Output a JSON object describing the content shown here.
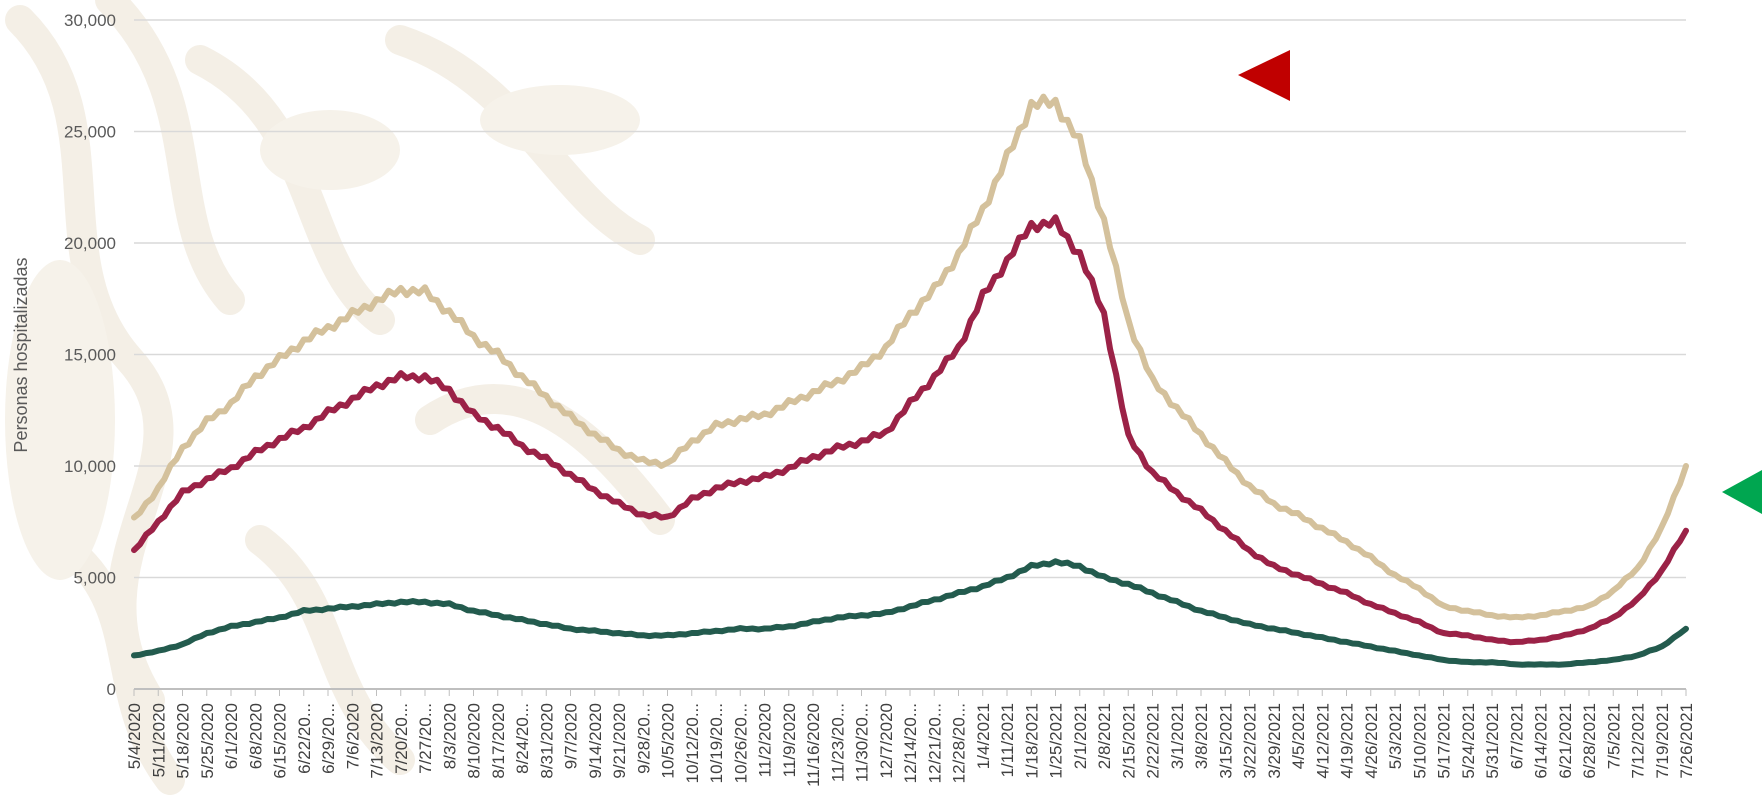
{
  "chart_data": {
    "type": "line",
    "title": "",
    "xlabel": "",
    "ylabel": "Personas hospitalizadas",
    "ylim": [
      0,
      30000
    ],
    "yticks": [
      "0",
      "5,000",
      "10,000",
      "15,000",
      "20,000",
      "25,000",
      "30,000"
    ],
    "grid": true,
    "legend": "none",
    "x": [
      "5/4/2020",
      "5/11/2020",
      "5/18/2020",
      "5/25/2020",
      "6/1/2020",
      "6/8/2020",
      "6/15/2020",
      "6/22/20...",
      "6/29/20...",
      "7/6/2020",
      "7/13/2020",
      "7/20/20...",
      "7/27/20...",
      "8/3/2020",
      "8/10/2020",
      "8/17/2020",
      "8/24/20...",
      "8/31/2020",
      "9/7/2020",
      "9/14/2020",
      "9/21/2020",
      "9/28/20...",
      "10/5/2020",
      "10/12/20...",
      "10/19/20...",
      "10/26/20...",
      "11/2/2020",
      "11/9/2020",
      "11/16/2020",
      "11/23/20...",
      "11/30/20...",
      "12/7/2020",
      "12/14/20...",
      "12/21/20...",
      "12/28/20...",
      "1/4/2021",
      "1/11/2021",
      "1/18/2021",
      "1/25/2021",
      "2/1/2021",
      "2/8/2021",
      "2/15/2021",
      "2/22/2021",
      "3/1/2021",
      "3/8/2021",
      "3/15/2021",
      "3/22/2021",
      "3/29/2021",
      "4/5/2021",
      "4/12/2021",
      "4/19/2021",
      "4/26/2021",
      "5/3/2021",
      "5/10/2021",
      "5/17/2021",
      "5/24/2021",
      "5/31/2021",
      "6/7/2021",
      "6/14/2021",
      "6/21/2021",
      "6/28/2021",
      "7/5/2021",
      "7/12/2021",
      "7/19/2021",
      "7/26/2021"
    ],
    "series": [
      {
        "color": "#d4c19c",
        "values": [
          7600,
          9000,
          10800,
          12000,
          12800,
          14000,
          14800,
          15600,
          16200,
          16800,
          17400,
          17900,
          17800,
          16900,
          15800,
          15000,
          14000,
          13100,
          12200,
          11400,
          10700,
          10200,
          10100,
          11100,
          11800,
          12100,
          12300,
          12800,
          13300,
          13800,
          14400,
          15300,
          16800,
          17900,
          19500,
          21500,
          23800,
          26200,
          26300,
          24500,
          21000,
          16500,
          13800,
          12600,
          11400,
          10200,
          9100,
          8300,
          7800,
          7200,
          6600,
          5900,
          5100,
          4500,
          3700,
          3500,
          3300,
          3200,
          3300,
          3500,
          3700,
          4400,
          5400,
          7200,
          10000
        ]
      },
      {
        "color": "#9b2247",
        "values": [
          6200,
          7500,
          8800,
          9400,
          9900,
          10600,
          11200,
          11700,
          12400,
          13000,
          13600,
          14000,
          14000,
          13400,
          12300,
          11700,
          10900,
          10300,
          9600,
          8900,
          8300,
          7800,
          7700,
          8500,
          9000,
          9300,
          9500,
          9900,
          10400,
          10800,
          11100,
          11500,
          12800,
          14000,
          15300,
          17600,
          19200,
          20800,
          20900,
          19500,
          16800,
          11300,
          9700,
          8800,
          8000,
          7100,
          6200,
          5500,
          5100,
          4700,
          4300,
          3800,
          3400,
          3000,
          2500,
          2400,
          2200,
          2100,
          2200,
          2400,
          2700,
          3200,
          4000,
          5300,
          7100
        ]
      },
      {
        "color": "#235b4e",
        "values": [
          1500,
          1700,
          2000,
          2500,
          2800,
          3000,
          3200,
          3500,
          3600,
          3700,
          3800,
          3900,
          3900,
          3800,
          3500,
          3300,
          3100,
          2900,
          2700,
          2600,
          2500,
          2400,
          2400,
          2500,
          2600,
          2700,
          2700,
          2800,
          3000,
          3200,
          3300,
          3400,
          3700,
          4000,
          4300,
          4600,
          5000,
          5500,
          5700,
          5500,
          5000,
          4700,
          4300,
          3900,
          3500,
          3200,
          2900,
          2700,
          2500,
          2300,
          2100,
          1900,
          1700,
          1500,
          1300,
          1200,
          1200,
          1100,
          1100,
          1100,
          1200,
          1300,
          1500,
          1900,
          2700
        ]
      }
    ]
  },
  "markers": [
    {
      "icon": "triangle-left-icon",
      "color": "#c00000"
    },
    {
      "icon": "triangle-left-icon",
      "color": "#00a650"
    }
  ],
  "colors": {
    "grid": "#d9d9d9",
    "axis": "#bfbfbf",
    "watermark": "#f2ede3"
  }
}
